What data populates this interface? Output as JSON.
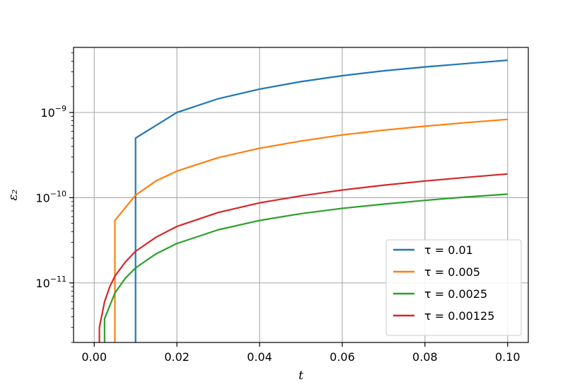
{
  "chart_data": {
    "type": "line",
    "title": "",
    "xlabel": "t",
    "ylabel": "ε₂",
    "yscale": "log",
    "xlim": [
      -0.005,
      0.105
    ],
    "ylim": [
      2e-12,
      5.8e-09
    ],
    "grid": true,
    "legend_position": "lower-right",
    "x_ticks": [
      0.0,
      0.02,
      0.04,
      0.06,
      0.08,
      0.1
    ],
    "x_tick_labels": [
      "0.00",
      "0.02",
      "0.04",
      "0.06",
      "0.08",
      "0.10"
    ],
    "y_ticks": [
      {
        "value": 1e-09,
        "base": "10",
        "exp": "−9"
      },
      {
        "value": 1e-10,
        "base": "10",
        "exp": "−10"
      },
      {
        "value": 1e-11,
        "base": "10",
        "exp": "−11"
      }
    ],
    "series": [
      {
        "name": "τ = 0.01",
        "color": "#1f77b4",
        "x": [
          0.01,
          0.01,
          0.02,
          0.03,
          0.04,
          0.05,
          0.06,
          0.07,
          0.08,
          0.09,
          0.1
        ],
        "y": [
          2e-12,
          5e-10,
          1e-09,
          1.45e-09,
          1.88e-09,
          2.3e-09,
          2.7e-09,
          3.08e-09,
          3.42e-09,
          3.75e-09,
          4.1e-09
        ]
      },
      {
        "name": "τ = 0.005",
        "color": "#ff7f0e",
        "x": [
          0.005,
          0.005,
          0.01,
          0.015,
          0.02,
          0.03,
          0.04,
          0.05,
          0.06,
          0.07,
          0.08,
          0.09,
          0.1
        ],
        "y": [
          2e-12,
          5.4e-11,
          1.07e-10,
          1.58e-10,
          2.05e-10,
          2.95e-10,
          3.8e-10,
          4.62e-10,
          5.45e-10,
          6.2e-10,
          6.9e-10,
          7.6e-10,
          8.3e-10
        ]
      },
      {
        "name": "τ = 0.0025",
        "color": "#2ca02c",
        "x": [
          0.0025,
          0.0025,
          0.005,
          0.0075,
          0.01,
          0.015,
          0.02,
          0.03,
          0.04,
          0.05,
          0.06,
          0.07,
          0.08,
          0.09,
          0.1
        ],
        "y": [
          2e-12,
          3.8e-12,
          7.6e-12,
          1.13e-11,
          1.5e-11,
          2.2e-11,
          2.9e-11,
          4.2e-11,
          5.4e-11,
          6.5e-11,
          7.5e-11,
          8.4e-11,
          9.3e-11,
          1.02e-10,
          1.1e-10
        ]
      },
      {
        "name": "τ = 0.00125",
        "color": "#d62728",
        "x": [
          0.00125,
          0.00125,
          0.0025,
          0.00375,
          0.005,
          0.0075,
          0.01,
          0.015,
          0.02,
          0.03,
          0.04,
          0.05,
          0.06,
          0.07,
          0.08,
          0.09,
          0.1
        ],
        "y": [
          2e-12,
          3e-12,
          6e-12,
          9e-12,
          1.2e-11,
          1.75e-11,
          2.35e-11,
          3.45e-11,
          4.6e-11,
          6.7e-11,
          8.7e-11,
          1.05e-10,
          1.23e-10,
          1.4e-10,
          1.57e-10,
          1.73e-10,
          1.9e-10
        ]
      }
    ]
  }
}
